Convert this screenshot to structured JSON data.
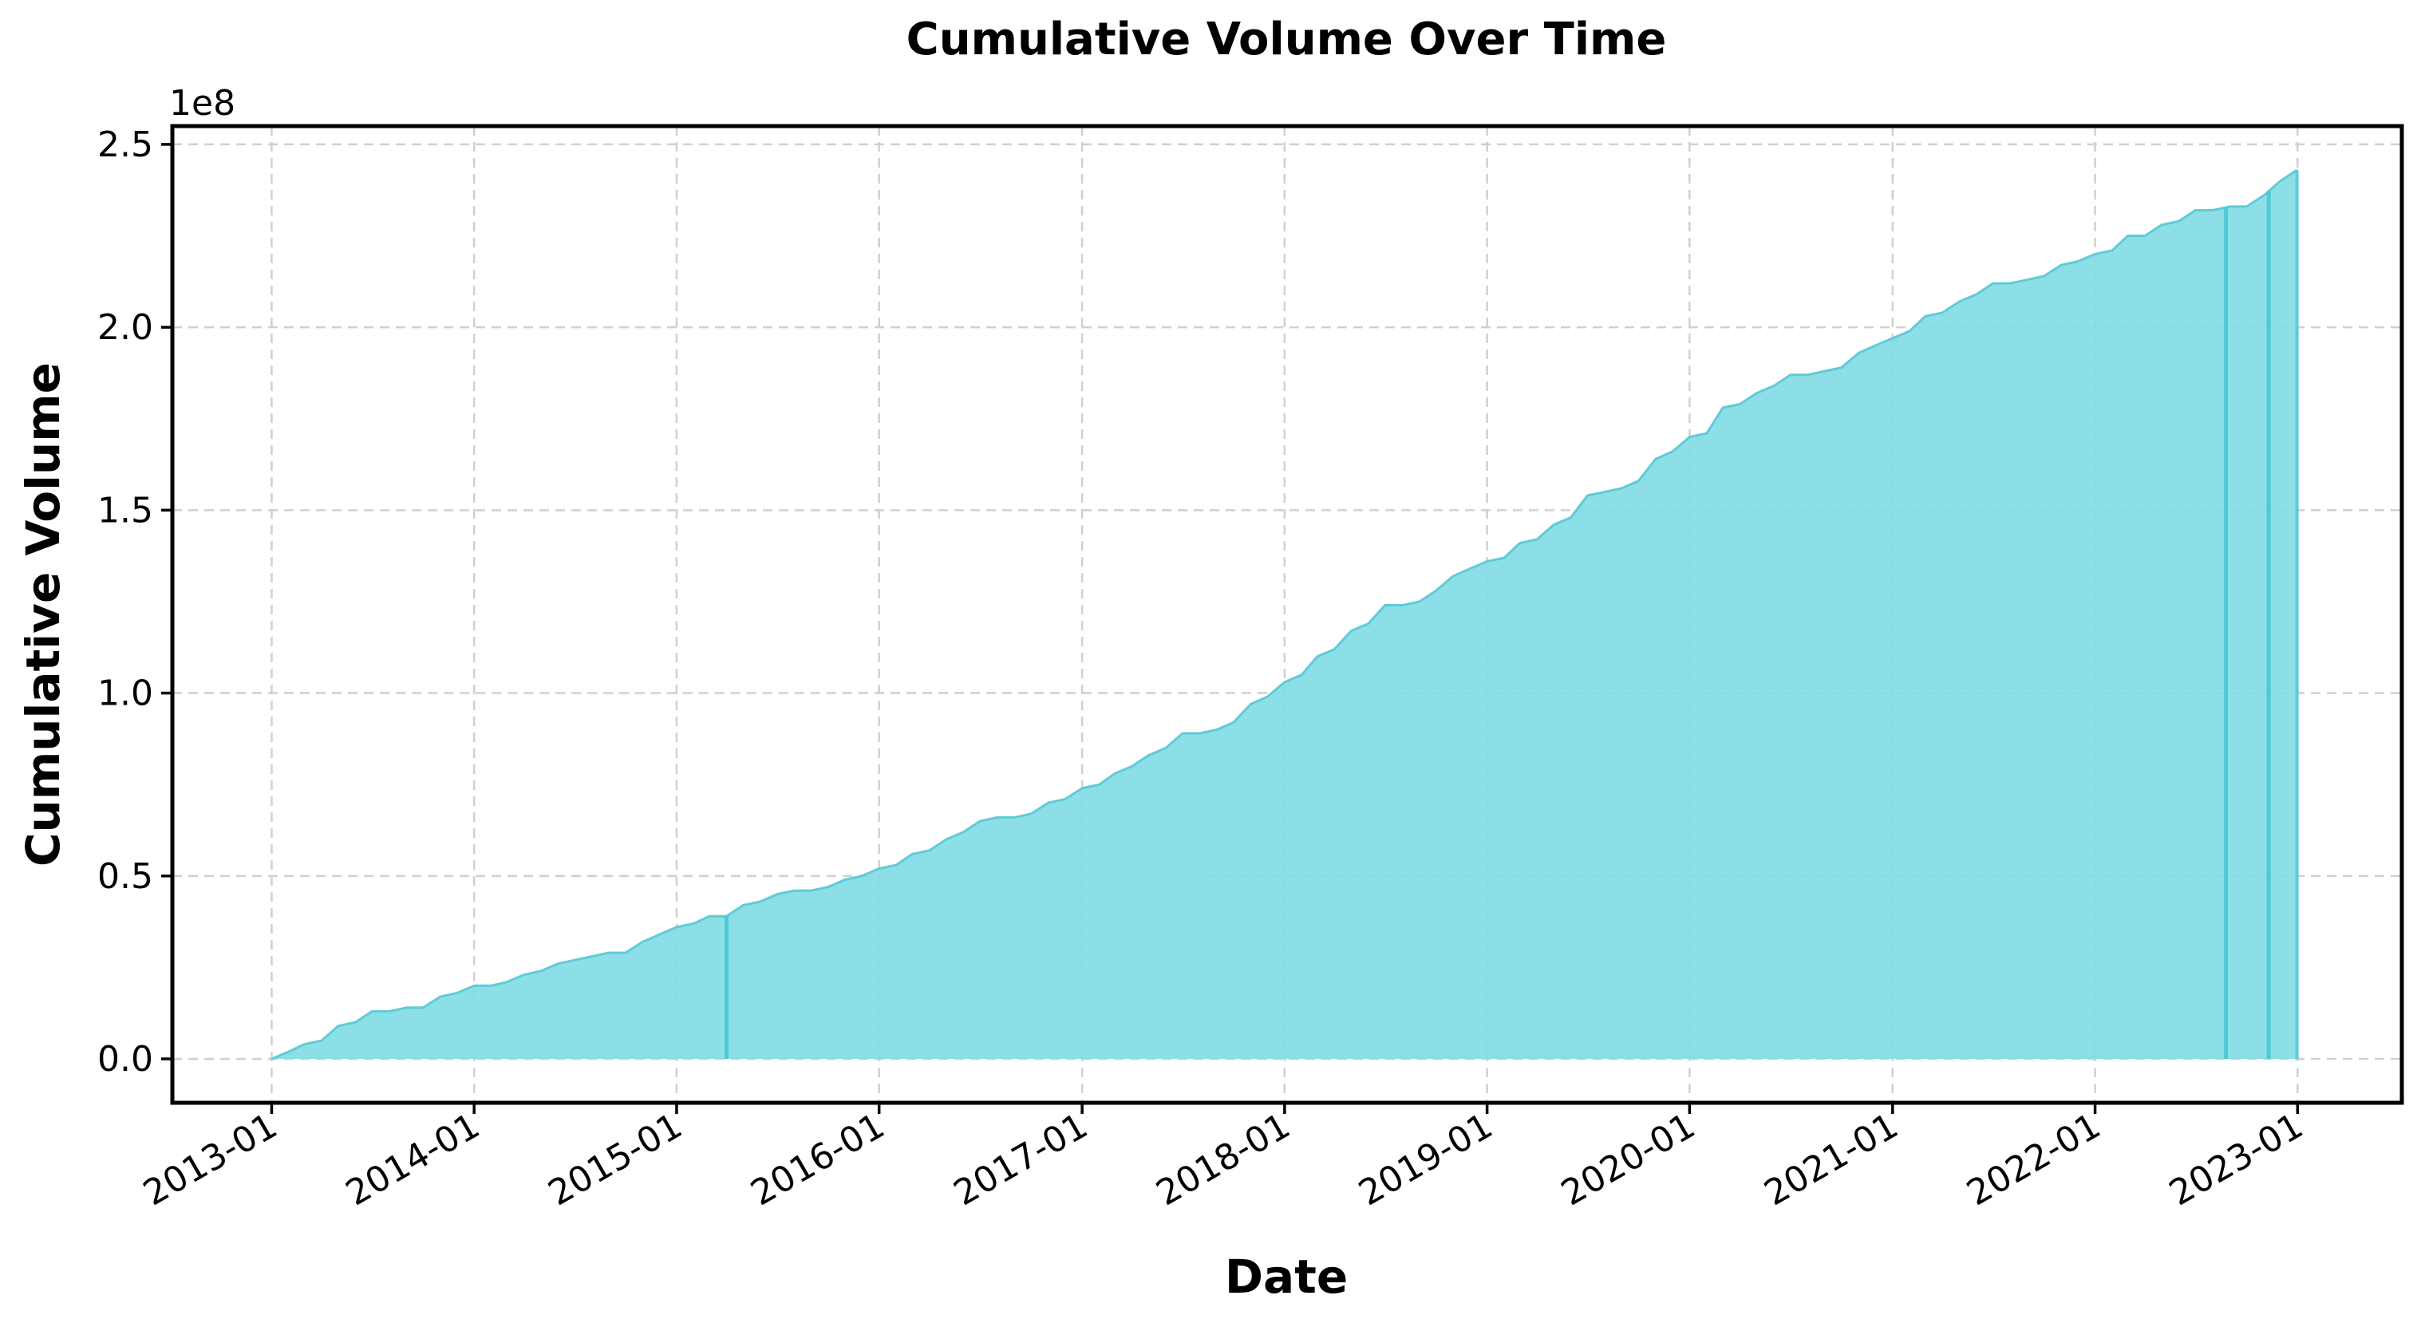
{
  "chart_data": {
    "type": "area",
    "title": "Cumulative Volume Over Time",
    "xlabel": "Date",
    "ylabel": "Cumulative Volume",
    "y_offset_label": "1e8",
    "x_tick_labels": [
      "2013-01",
      "2014-01",
      "2015-01",
      "2016-01",
      "2017-01",
      "2018-01",
      "2019-01",
      "2020-01",
      "2021-01",
      "2022-01",
      "2023-01"
    ],
    "y_tick_labels": [
      "0.0",
      "0.5",
      "1.0",
      "1.5",
      "2.0",
      "2.5"
    ],
    "y_ticks": [
      0,
      0.5,
      1.0,
      1.5,
      2.0,
      2.5
    ],
    "ylim": [
      -0.12,
      2.55
    ],
    "xlim": [
      "2012-07-06",
      "2023-07-08"
    ],
    "y_units": "1e8",
    "fill_color": "#7fdbe4",
    "line_color": "#5fcbd8",
    "grid": true,
    "series": [
      {
        "values": [
          [
            "2013-01-01",
            0.0
          ],
          [
            "2013-02-01",
            0.02
          ],
          [
            "2013-03-01",
            0.04
          ],
          [
            "2013-04-01",
            0.05
          ],
          [
            "2013-05-01",
            0.09
          ],
          [
            "2013-06-01",
            0.1
          ],
          [
            "2013-07-01",
            0.13
          ],
          [
            "2013-08-01",
            0.13
          ],
          [
            "2013-09-01",
            0.14
          ],
          [
            "2013-10-01",
            0.14
          ],
          [
            "2013-11-01",
            0.17
          ],
          [
            "2013-12-01",
            0.18
          ],
          [
            "2014-01-01",
            0.2
          ],
          [
            "2014-02-01",
            0.2
          ],
          [
            "2014-03-01",
            0.21
          ],
          [
            "2014-04-01",
            0.23
          ],
          [
            "2014-05-01",
            0.24
          ],
          [
            "2014-06-01",
            0.26
          ],
          [
            "2014-07-01",
            0.27
          ],
          [
            "2014-08-01",
            0.28
          ],
          [
            "2014-09-01",
            0.29
          ],
          [
            "2014-10-01",
            0.29
          ],
          [
            "2014-11-01",
            0.32
          ],
          [
            "2014-12-01",
            0.34
          ],
          [
            "2015-01-01",
            0.36
          ],
          [
            "2015-02-01",
            0.37
          ],
          [
            "2015-03-01",
            0.39
          ],
          [
            "2015-04-01",
            0.39
          ],
          [
            "2015-05-01",
            0.42
          ],
          [
            "2015-06-01",
            0.43
          ],
          [
            "2015-07-01",
            0.45
          ],
          [
            "2015-08-01",
            0.46
          ],
          [
            "2015-09-01",
            0.46
          ],
          [
            "2015-10-01",
            0.47
          ],
          [
            "2015-11-01",
            0.49
          ],
          [
            "2015-12-01",
            0.5
          ],
          [
            "2016-01-01",
            0.52
          ],
          [
            "2016-02-01",
            0.53
          ],
          [
            "2016-03-01",
            0.56
          ],
          [
            "2016-04-01",
            0.57
          ],
          [
            "2016-05-01",
            0.6
          ],
          [
            "2016-06-01",
            0.62
          ],
          [
            "2016-07-01",
            0.65
          ],
          [
            "2016-08-01",
            0.66
          ],
          [
            "2016-09-01",
            0.66
          ],
          [
            "2016-10-01",
            0.67
          ],
          [
            "2016-11-01",
            0.7
          ],
          [
            "2016-12-01",
            0.71
          ],
          [
            "2017-01-01",
            0.74
          ],
          [
            "2017-02-01",
            0.75
          ],
          [
            "2017-03-01",
            0.78
          ],
          [
            "2017-04-01",
            0.8
          ],
          [
            "2017-05-01",
            0.83
          ],
          [
            "2017-06-01",
            0.85
          ],
          [
            "2017-07-01",
            0.89
          ],
          [
            "2017-08-01",
            0.89
          ],
          [
            "2017-09-01",
            0.9
          ],
          [
            "2017-10-01",
            0.92
          ],
          [
            "2017-11-01",
            0.97
          ],
          [
            "2017-12-01",
            0.99
          ],
          [
            "2018-01-01",
            1.03
          ],
          [
            "2018-02-01",
            1.05
          ],
          [
            "2018-03-01",
            1.1
          ],
          [
            "2018-04-01",
            1.12
          ],
          [
            "2018-05-01",
            1.17
          ],
          [
            "2018-06-01",
            1.19
          ],
          [
            "2018-07-01",
            1.24
          ],
          [
            "2018-08-01",
            1.24
          ],
          [
            "2018-09-01",
            1.25
          ],
          [
            "2018-10-01",
            1.28
          ],
          [
            "2018-11-01",
            1.32
          ],
          [
            "2018-12-01",
            1.34
          ],
          [
            "2019-01-01",
            1.36
          ],
          [
            "2019-02-01",
            1.37
          ],
          [
            "2019-03-01",
            1.41
          ],
          [
            "2019-04-01",
            1.42
          ],
          [
            "2019-05-01",
            1.46
          ],
          [
            "2019-06-01",
            1.48
          ],
          [
            "2019-07-01",
            1.54
          ],
          [
            "2019-08-01",
            1.55
          ],
          [
            "2019-09-01",
            1.56
          ],
          [
            "2019-10-01",
            1.58
          ],
          [
            "2019-11-01",
            1.64
          ],
          [
            "2019-12-01",
            1.66
          ],
          [
            "2020-01-01",
            1.7
          ],
          [
            "2020-02-01",
            1.71
          ],
          [
            "2020-03-01",
            1.78
          ],
          [
            "2020-04-01",
            1.79
          ],
          [
            "2020-05-01",
            1.82
          ],
          [
            "2020-06-01",
            1.84
          ],
          [
            "2020-07-01",
            1.87
          ],
          [
            "2020-08-01",
            1.87
          ],
          [
            "2020-09-01",
            1.88
          ],
          [
            "2020-10-01",
            1.89
          ],
          [
            "2020-11-01",
            1.93
          ],
          [
            "2020-12-01",
            1.95
          ],
          [
            "2021-01-01",
            1.97
          ],
          [
            "2021-02-01",
            1.99
          ],
          [
            "2021-03-01",
            2.03
          ],
          [
            "2021-04-01",
            2.04
          ],
          [
            "2021-05-01",
            2.07
          ],
          [
            "2021-06-01",
            2.09
          ],
          [
            "2021-07-01",
            2.12
          ],
          [
            "2021-08-01",
            2.12
          ],
          [
            "2021-09-01",
            2.13
          ],
          [
            "2021-10-01",
            2.14
          ],
          [
            "2021-11-01",
            2.17
          ],
          [
            "2021-12-01",
            2.18
          ],
          [
            "2022-01-01",
            2.2
          ],
          [
            "2022-02-01",
            2.21
          ],
          [
            "2022-03-01",
            2.25
          ],
          [
            "2022-04-01",
            2.25
          ],
          [
            "2022-05-01",
            2.28
          ],
          [
            "2022-06-01",
            2.29
          ],
          [
            "2022-07-01",
            2.32
          ],
          [
            "2022-08-01",
            2.32
          ],
          [
            "2022-09-01",
            2.33
          ],
          [
            "2022-10-01",
            2.33
          ],
          [
            "2022-11-01",
            2.36
          ],
          [
            "2022-12-01",
            2.4
          ],
          [
            "2022-12-31",
            2.43
          ]
        ]
      }
    ],
    "vertical_markers": [
      "2015-04-01",
      "2022-08-25",
      "2022-11-10"
    ]
  }
}
